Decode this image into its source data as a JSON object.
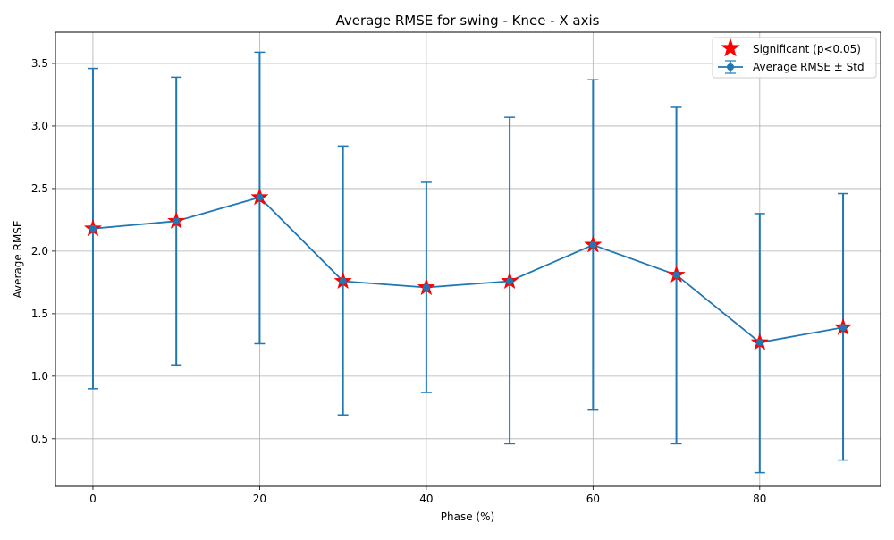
{
  "chart_data": {
    "type": "line",
    "title": "Average RMSE for swing - Knee - X axis",
    "xlabel": "Phase (%)",
    "ylabel": "Average RMSE",
    "xlim": [
      -4.5,
      94.5
    ],
    "ylim": [
      0.12,
      3.75
    ],
    "xticks": [
      0,
      20,
      40,
      60,
      80
    ],
    "yticks": [
      0.5,
      1.0,
      1.5,
      2.0,
      2.5,
      3.0,
      3.5
    ],
    "xtick_labels": [
      "0",
      "20",
      "40",
      "60",
      "80"
    ],
    "ytick_labels": [
      "0.5",
      "1.0",
      "1.5",
      "2.0",
      "2.5",
      "3.0",
      "3.5"
    ],
    "grid": true,
    "legend_position": "top-right",
    "x": [
      0,
      10,
      20,
      30,
      40,
      50,
      60,
      70,
      80,
      90
    ],
    "series": [
      {
        "name": "Average RMSE ± Std",
        "color": "#1f77b4",
        "values": [
          2.18,
          2.24,
          2.43,
          1.76,
          1.71,
          1.76,
          2.05,
          1.81,
          1.27,
          1.39
        ],
        "err_upper": [
          3.46,
          3.39,
          3.59,
          2.84,
          2.55,
          3.07,
          3.37,
          3.15,
          2.3,
          2.46
        ],
        "err_lower": [
          0.9,
          1.09,
          1.26,
          0.69,
          0.87,
          0.46,
          0.73,
          0.46,
          0.23,
          0.33
        ]
      },
      {
        "name": "Significant (p<0.05)",
        "color": "#ff0000",
        "marker": "star",
        "x": [
          0,
          10,
          20,
          30,
          40,
          50,
          60,
          70,
          80,
          90
        ],
        "values": [
          2.18,
          2.24,
          2.43,
          1.76,
          1.71,
          1.76,
          2.05,
          1.81,
          1.27,
          1.39
        ]
      }
    ]
  }
}
